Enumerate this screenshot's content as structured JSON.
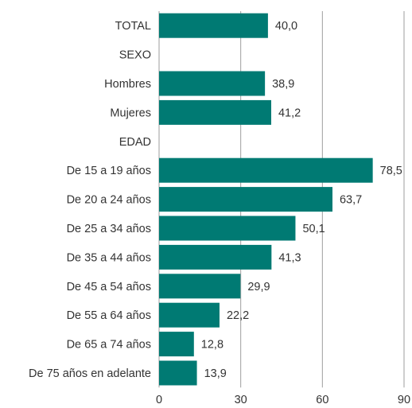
{
  "chart_data": {
    "type": "bar",
    "orientation": "horizontal",
    "categories": [
      "TOTAL",
      "SEXO",
      "Hombres",
      "Mujeres",
      "EDAD",
      "De 15 a 19 años",
      "De 20 a 24 años",
      "De 25 a 34 años",
      "De 35 a 44 años",
      "De 45 a 54 años",
      "De 55 a 64 años",
      "De 65 a 74 años",
      "De 75 años en adelante"
    ],
    "values": [
      40.0,
      null,
      38.9,
      41.2,
      null,
      78.5,
      63.7,
      50.1,
      41.3,
      29.9,
      22.2,
      12.8,
      13.9
    ],
    "value_labels": [
      "40,0",
      "",
      "38,9",
      "41,2",
      "",
      "78,5",
      "63,7",
      "50,1",
      "41,3",
      "29,9",
      "22,2",
      "12,8",
      "13,9"
    ],
    "xlim": [
      0,
      90
    ],
    "xticks": [
      0,
      30,
      60,
      90
    ],
    "xtick_labels": [
      "0",
      "30",
      "60",
      "90"
    ],
    "grid": "vertical",
    "bar_color": "#007a73",
    "grid_color": "#9e9e9e"
  }
}
